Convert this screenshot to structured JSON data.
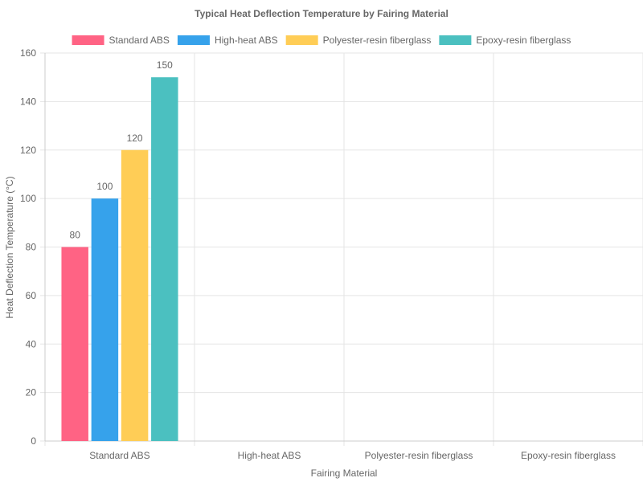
{
  "chart_data": {
    "type": "bar",
    "title": "Typical Heat Deflection Temperature by Fairing Material",
    "xlabel": "Fairing Material",
    "ylabel": "Heat Deflection Temperature (°C)",
    "categories": [
      "Standard ABS",
      "High-heat ABS",
      "Polyester-resin fiberglass",
      "Epoxy-resin fiberglass"
    ],
    "series": [
      {
        "name": "Standard ABS",
        "values": [
          80,
          null,
          null,
          null
        ],
        "color": "#ff6384"
      },
      {
        "name": "High-heat ABS",
        "values": [
          100,
          null,
          null,
          null
        ],
        "color": "#36a2eb"
      },
      {
        "name": "Polyester-resin fiberglass",
        "values": [
          120,
          null,
          null,
          null
        ],
        "color": "#ffcd56"
      },
      {
        "name": "Epoxy-resin fiberglass",
        "values": [
          150,
          null,
          null,
          null
        ],
        "color": "#4bc0c0"
      }
    ],
    "ylim": [
      0,
      160
    ],
    "yticks": [
      0,
      20,
      40,
      60,
      80,
      100,
      120,
      140,
      160
    ],
    "grid": true,
    "legend": "top-center",
    "show_data_labels": true
  }
}
